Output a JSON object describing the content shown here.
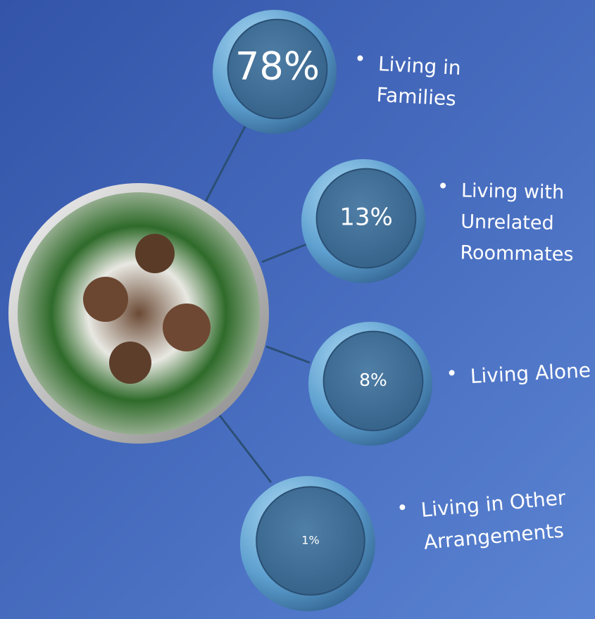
{
  "items": [
    {
      "value": "78%",
      "label_lines": [
        "Living in",
        "Families"
      ]
    },
    {
      "value": "13%",
      "label_lines": [
        "Living with",
        "Unrelated",
        "Roommates"
      ]
    },
    {
      "value": "8%",
      "label_lines": [
        "Living Alone"
      ]
    },
    {
      "value": "1%",
      "label_lines": [
        "Living in Other",
        "Arrangements"
      ]
    }
  ]
}
